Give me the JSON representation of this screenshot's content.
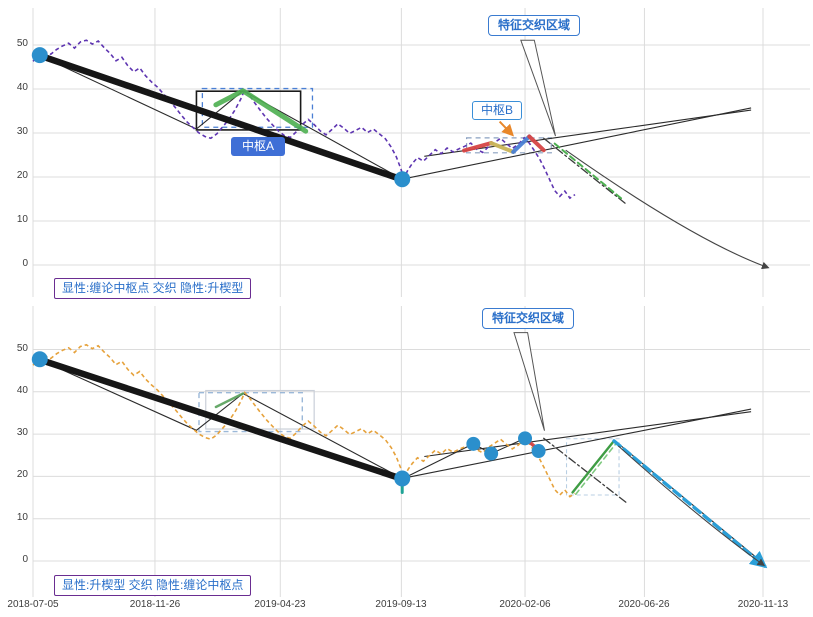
{
  "chart_data": {
    "type": "line",
    "description": "Two stacked technical-analysis panels of the same price series with Chan-theory pivot and rising-wedge annotations",
    "x_ticks": [
      {
        "day": 0,
        "label": "2018-07-05"
      },
      {
        "day": 144,
        "label": "2018-11-26"
      },
      {
        "day": 292,
        "label": "2019-04-23"
      },
      {
        "day": 435,
        "label": "2019-09-13"
      },
      {
        "day": 581,
        "label": "2020-02-06"
      },
      {
        "day": 722,
        "label": "2020-06-26"
      },
      {
        "day": 862,
        "label": "2020-11-13"
      }
    ],
    "y_ticks": [
      0,
      10,
      20,
      30,
      40,
      50
    ],
    "price_points": [
      [
        0,
        46.3
      ],
      [
        7,
        47.7
      ],
      [
        14,
        48.5
      ],
      [
        21,
        47.9
      ],
      [
        28,
        49.0
      ],
      [
        35,
        49.8
      ],
      [
        42,
        50.4
      ],
      [
        49,
        49.3
      ],
      [
        56,
        50.7
      ],
      [
        63,
        51.1
      ],
      [
        70,
        50.2
      ],
      [
        77,
        50.9
      ],
      [
        84,
        49.4
      ],
      [
        91,
        48.1
      ],
      [
        98,
        46.4
      ],
      [
        105,
        47.2
      ],
      [
        112,
        45.3
      ],
      [
        119,
        43.9
      ],
      [
        126,
        44.8
      ],
      [
        133,
        43.0
      ],
      [
        140,
        41.6
      ],
      [
        147,
        40.4
      ],
      [
        154,
        38.9
      ],
      [
        161,
        37.4
      ],
      [
        168,
        35.8
      ],
      [
        175,
        34.1
      ],
      [
        182,
        32.5
      ],
      [
        189,
        31.2
      ],
      [
        196,
        30.0
      ],
      [
        203,
        29.2
      ],
      [
        210,
        28.8
      ],
      [
        217,
        29.8
      ],
      [
        224,
        31.4
      ],
      [
        231,
        33.0
      ],
      [
        238,
        35.1
      ],
      [
        245,
        37.6
      ],
      [
        250,
        39.8
      ],
      [
        255,
        38.7
      ],
      [
        262,
        36.8
      ],
      [
        269,
        35.0
      ],
      [
        276,
        33.3
      ],
      [
        283,
        31.8
      ],
      [
        290,
        30.4
      ],
      [
        297,
        29.4
      ],
      [
        304,
        29.0
      ],
      [
        311,
        30.3
      ],
      [
        318,
        31.9
      ],
      [
        325,
        33.1
      ],
      [
        332,
        31.9
      ],
      [
        339,
        30.5
      ],
      [
        346,
        29.6
      ],
      [
        353,
        30.8
      ],
      [
        360,
        32.1
      ],
      [
        367,
        31.1
      ],
      [
        374,
        29.9
      ],
      [
        381,
        30.6
      ],
      [
        388,
        31.3
      ],
      [
        395,
        30.1
      ],
      [
        402,
        30.9
      ],
      [
        409,
        29.8
      ],
      [
        416,
        28.7
      ],
      [
        423,
        26.8
      ],
      [
        429,
        24.6
      ],
      [
        434,
        22.1
      ],
      [
        438,
        19.8
      ],
      [
        443,
        21.7
      ],
      [
        448,
        23.1
      ],
      [
        454,
        24.4
      ],
      [
        461,
        23.6
      ],
      [
        468,
        24.9
      ],
      [
        475,
        26.2
      ],
      [
        482,
        25.3
      ],
      [
        489,
        26.6
      ],
      [
        496,
        25.7
      ],
      [
        503,
        26.4
      ],
      [
        510,
        27.0
      ],
      [
        517,
        27.7
      ],
      [
        524,
        26.3
      ],
      [
        531,
        25.6
      ],
      [
        538,
        26.9
      ],
      [
        545,
        27.8
      ],
      [
        552,
        28.8
      ],
      [
        559,
        27.6
      ],
      [
        566,
        26.5
      ],
      [
        573,
        27.4
      ],
      [
        580,
        28.9
      ],
      [
        586,
        27.7
      ],
      [
        592,
        26.0
      ],
      [
        598,
        24.2
      ],
      [
        604,
        21.9
      ],
      [
        610,
        19.4
      ],
      [
        616,
        16.9
      ],
      [
        622,
        15.6
      ],
      [
        628,
        16.8
      ],
      [
        634,
        15.2
      ],
      [
        640,
        16.0
      ]
    ],
    "panels": [
      {
        "name": "top-panel-explicit-chan-pivots",
        "price_color": "#5e35b1",
        "feature_label": "特征交织区域",
        "caption": "显性:缠论中枢点 交织 隐性:升楔型",
        "pivot_labels": [
          {
            "text": "中枢A",
            "style": "filled"
          },
          {
            "text": "中枢B",
            "style": "outline"
          }
        ],
        "thick_segment": [
          [
            8,
            47.6
          ],
          [
            436,
            19.4
          ]
        ],
        "markers": [
          {
            "day": 8,
            "value": 47.7,
            "r": 8
          },
          {
            "day": 436,
            "value": 19.5,
            "r": 8
          }
        ],
        "thin_lines": [
          [
            [
              8,
              47.6
            ],
            [
              193,
              30.9
            ],
            [
              248,
              39.6
            ],
            [
              436,
              19.5
            ]
          ],
          [
            [
              438,
              19.6
            ],
            [
              848,
              35.7
            ]
          ],
          [
            [
              462,
              24.7
            ],
            [
              848,
              35.2
            ]
          ]
        ],
        "styled_lines": [
          {
            "color": "#3b3b3b",
            "width": 1.3,
            "dash": "8 3 2 3",
            "points": [
              [
                603,
                28.8
              ],
              [
                700,
                13.9
              ]
            ]
          },
          {
            "color": "#4caf50",
            "width": 2,
            "dash": "6 4",
            "points": [
              [
                616,
                27.6
              ],
              [
                698,
                14.6
              ]
            ]
          }
        ],
        "colored_segments": [
          {
            "color": "#4caf50",
            "width": 5,
            "opacity": 0.9,
            "points": [
              [
                216,
                36.4
              ],
              [
                248,
                39.6
              ],
              [
                322,
                30.4
              ]
            ]
          },
          {
            "color": "#d64545",
            "width": 4,
            "opacity": 0.95,
            "points": [
              [
                509,
                26.0
              ],
              [
                541,
                27.7
              ]
            ]
          },
          {
            "color": "#c9b458",
            "width": 4,
            "opacity": 0.95,
            "points": [
              [
                541,
                27.7
              ],
              [
                567,
                25.7
              ]
            ]
          },
          {
            "color": "#4a7fd4",
            "width": 4,
            "opacity": 0.95,
            "points": [
              [
                567,
                25.7
              ],
              [
                586,
                29.2
              ]
            ]
          },
          {
            "color": "#d64545",
            "width": 4,
            "opacity": 0.95,
            "points": [
              [
                586,
                29.2
              ],
              [
                603,
                26.1
              ]
            ]
          }
        ],
        "boxes": [
          {
            "stroke": "#1a1a1a",
            "dash": null,
            "width": 1.6,
            "x0": 193,
            "x1": 316,
            "v0": 30.7,
            "v1": 39.5
          },
          {
            "stroke": "#4a7fd4",
            "dash": "5 4",
            "width": 1.3,
            "x0": 200,
            "x1": 330,
            "v0": 31.3,
            "v1": 40.1
          },
          {
            "stroke": "#8aa0c0",
            "dash": "5 4",
            "width": 1.2,
            "x0": 512,
            "x1": 612,
            "v0": 25.5,
            "v1": 28.9
          }
        ],
        "pointer_wedge": {
          "base": [
            [
              576,
              51.1
            ],
            [
              592,
              51.1
            ]
          ],
          "apex": [
            617,
            29.3
          ]
        },
        "curved_arrow": {
          "from": [
            629,
            26.1
          ],
          "ctrl": [
            781,
            5.5
          ],
          "to": [
            868,
            -0.6
          ]
        },
        "pivot_arrow": {
          "color": "#e8872a",
          "from": [
            551,
            32.6
          ],
          "to": [
            566,
            29.6
          ]
        }
      },
      {
        "name": "bottom-panel-explicit-rising-wedge",
        "price_color": "#e6a23c",
        "feature_label": "特征交织区域",
        "caption": "显性:升楔型 交织 隐性:缠论中枢点",
        "pivot_labels": [],
        "thick_segment": [
          [
            8,
            47.6
          ],
          [
            436,
            19.4
          ]
        ],
        "markers": [
          {
            "day": 8,
            "value": 47.7,
            "r": 8
          },
          {
            "day": 436,
            "value": 19.5,
            "r": 8
          },
          {
            "day": 520,
            "value": 27.7,
            "r": 7
          },
          {
            "day": 541,
            "value": 25.4,
            "r": 7
          },
          {
            "day": 581,
            "value": 29.0,
            "r": 7
          },
          {
            "day": 597,
            "value": 26.0,
            "r": 7
          }
        ],
        "thin_lines": [
          [
            [
              8,
              47.6
            ],
            [
              193,
              30.9
            ],
            [
              248,
              39.6
            ],
            [
              436,
              19.5
            ]
          ],
          [
            [
              438,
              19.6
            ],
            [
              520,
              27.7
            ],
            [
              541,
              25.4
            ],
            [
              581,
              29.0
            ],
            [
              597,
              26.0
            ]
          ],
          [
            [
              438,
              19.6
            ],
            [
              848,
              35.9
            ]
          ],
          [
            [
              462,
              24.7
            ],
            [
              848,
              35.3
            ]
          ],
          [
            [
              686,
              28.6
            ],
            [
              864,
              -0.8
            ]
          ]
        ],
        "styled_lines": [
          {
            "color": "#3b3b3b",
            "width": 1.3,
            "dash": "8 3 2 3",
            "points": [
              [
                603,
                29.0
              ],
              [
                702,
                13.6
              ]
            ]
          },
          {
            "color": "#3f9d44",
            "width": 2.4,
            "dash": null,
            "points": [
              [
                637,
                16.2
              ],
              [
                686,
                28.4
              ]
            ]
          },
          {
            "color": "#7ec97f",
            "width": 1.6,
            "dash": "5 4",
            "points": [
              [
                641,
                15.8
              ],
              [
                689,
                27.9
              ]
            ]
          },
          {
            "color": "#2a9fd8",
            "width": 3.4,
            "dash": "8 5",
            "points": [
              [
                686,
                28.4
              ],
              [
                864,
                -1.2
              ]
            ],
            "marker": "blue"
          },
          {
            "color": "#1fa396",
            "width": 3,
            "dash": null,
            "points": [
              [
                436,
                19.0
              ],
              [
                436,
                16.2
              ]
            ]
          }
        ],
        "colored_segments": [
          {
            "color": "#57a05a",
            "width": 2.4,
            "opacity": 0.9,
            "points": [
              [
                216,
                36.4
              ],
              [
                248,
                39.6
              ]
            ]
          },
          {
            "color": "#d64545",
            "width": 3.5,
            "opacity": 0.95,
            "points": [
              [
                581,
                29.0
              ],
              [
                600,
                25.8
              ]
            ]
          }
        ],
        "boxes": [
          {
            "stroke": "#9bb8d8",
            "dash": "5 4",
            "width": 1.4,
            "x0": 196,
            "x1": 318,
            "v0": 30.6,
            "v1": 39.8
          },
          {
            "stroke": "#c9cfd8",
            "dash": null,
            "width": 1.2,
            "x0": 204,
            "x1": 332,
            "v0": 31.2,
            "v1": 40.3
          },
          {
            "stroke": "#b9cfe3",
            "dash": "4 3",
            "width": 1.1,
            "x0": 630,
            "x1": 692,
            "v0": 15.6,
            "v1": 28.9
          }
        ],
        "pointer_wedge": {
          "base": [
            [
              568,
              54.0
            ],
            [
              584,
              54.0
            ]
          ],
          "apex": [
            604,
            30.8
          ]
        },
        "curved_arrow": {
          "from": [
            691,
            27.2
          ],
          "ctrl": [
            790,
            9.5
          ],
          "to": [
            863,
            -1.0
          ]
        }
      }
    ]
  }
}
